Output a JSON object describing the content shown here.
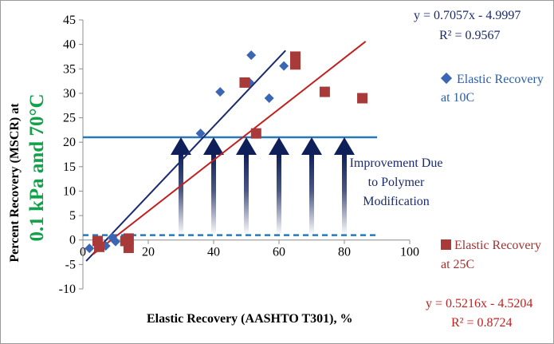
{
  "chart_data": {
    "type": "scatter",
    "xlabel": "Elastic Recovery (AASHTO T301), %",
    "ylabel_line1": "Percent Recovery (MSCR) at",
    "ylabel_line2": "0.1 kPa and 70°C",
    "xlim": [
      0,
      100
    ],
    "ylim": [
      -10,
      45
    ],
    "x_ticks": [
      0,
      20,
      40,
      60,
      80,
      100
    ],
    "y_ticks": [
      -10,
      -5,
      0,
      5,
      10,
      15,
      20,
      25,
      30,
      35,
      40,
      45
    ],
    "grid": false,
    "series": [
      {
        "name": "Elastic Recovery at 10C",
        "marker": "diamond",
        "color": "#3a66b3",
        "points": [
          {
            "x": 2,
            "y": -1.7
          },
          {
            "x": 7,
            "y": -1.2
          },
          {
            "x": 9,
            "y": 0.5
          },
          {
            "x": 10,
            "y": -0.3
          },
          {
            "x": 36,
            "y": 21.8
          },
          {
            "x": 42,
            "y": 30.3
          },
          {
            "x": 51,
            "y": 32.2
          },
          {
            "x": 51.5,
            "y": 37.8
          },
          {
            "x": 57,
            "y": 29.0
          },
          {
            "x": 61.5,
            "y": 35.6
          }
        ],
        "trendline": {
          "slope": 0.7057,
          "intercept": -4.9997,
          "x_range": [
            1,
            62
          ],
          "color": "#1a2a6e"
        },
        "equation": "y = 0.7057x - 4.9997",
        "r2": "R² = 0.9567"
      },
      {
        "name": "Elastic Recovery at 25C",
        "marker": "square",
        "color": "#a83a3a",
        "points": [
          {
            "x": 4.5,
            "y": -0.2
          },
          {
            "x": 5,
            "y": -1.4
          },
          {
            "x": 13,
            "y": -0.2
          },
          {
            "x": 14,
            "y": 0.3
          },
          {
            "x": 14,
            "y": -1.6
          },
          {
            "x": 49.5,
            "y": 32.2
          },
          {
            "x": 53,
            "y": 21.8
          },
          {
            "x": 65,
            "y": 37.5
          },
          {
            "x": 65,
            "y": 35.9
          },
          {
            "x": 74,
            "y": 30.3
          },
          {
            "x": 85.5,
            "y": 29.0
          }
        ],
        "trendline": {
          "slope": 0.5216,
          "intercept": -4.5204,
          "x_range": [
            3,
            86.5
          ],
          "color": "#c0211f"
        },
        "equation": "y = 0.5216x - 4.5204",
        "r2": "R² = 0.8724"
      }
    ],
    "reference_lines": [
      {
        "y": 21,
        "style": "solid",
        "color": "#2a78b6",
        "x_range": [
          0,
          90
        ]
      },
      {
        "y": 1,
        "style": "dashed",
        "color": "#2a78b6",
        "x_range": [
          0,
          90
        ]
      }
    ],
    "arrows": {
      "x_values": [
        30,
        40,
        50,
        60,
        70,
        80
      ],
      "from_y": 1,
      "to_y": 21,
      "color": "#0f1f5a"
    },
    "annotation": "Improvement Due to Polymer Modification"
  },
  "legend": {
    "series_10C_line1": "Elastic Recovery",
    "series_10C_line2": "at 10C",
    "series_25C_line1": "Elastic Recovery",
    "series_25C_line2": "at 25C"
  }
}
